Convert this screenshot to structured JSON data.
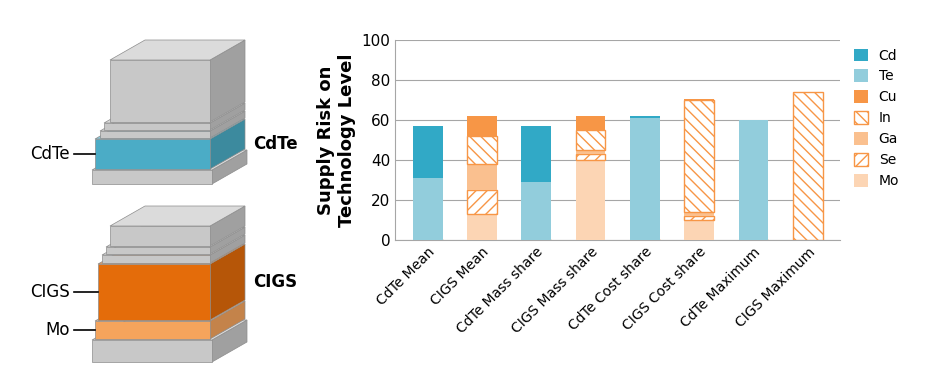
{
  "chart_data": {
    "type": "bar",
    "stacked": true,
    "y_label": "Supply Risk on\nTechnology Level",
    "categories": [
      "CdTe Mean",
      "CIGS Mean",
      "CdTe Mass share",
      "CIGS Mass share",
      "CdTe Cost share",
      "CIGS Cost share",
      "CdTe Maximum",
      "CIGS Maximum"
    ],
    "series": [
      {
        "name": "Cd",
        "color": "#31a9c6",
        "values": [
          26,
          0,
          28,
          0,
          1,
          0,
          0,
          0
        ]
      },
      {
        "name": "Te",
        "color": "#92cddc",
        "values": [
          31,
          0,
          29,
          0,
          61,
          0,
          60,
          0
        ]
      },
      {
        "name": "Cu",
        "color": "#f79646",
        "values": [
          0,
          10,
          0,
          7,
          0,
          0.5,
          0,
          0
        ]
      },
      {
        "name": "In",
        "color": "#f79646",
        "values": [
          0,
          14,
          0,
          10,
          0,
          56,
          0,
          74
        ]
      },
      {
        "name": "Ga",
        "color": "#fac08f",
        "values": [
          0,
          13,
          0,
          2,
          0,
          2,
          0,
          0
        ]
      },
      {
        "name": "Se",
        "color": "#f79646",
        "values": [
          0,
          12,
          0,
          3,
          0,
          2,
          0,
          0
        ]
      },
      {
        "name": "Mo",
        "color": "#fcd5b4",
        "values": [
          0,
          13,
          0,
          40,
          0,
          10,
          0,
          0
        ]
      }
    ],
    "ylim": [
      0,
      100
    ],
    "yticks": [
      0,
      20,
      40,
      60,
      80,
      100
    ],
    "grid": true,
    "legend": "upper right"
  },
  "diagram": {
    "stacks": [
      {
        "name": "CdTe",
        "labels": [
          "CdTe"
        ]
      },
      {
        "name": "CIGS",
        "labels": [
          "CIGS",
          "Mo"
        ]
      }
    ]
  }
}
